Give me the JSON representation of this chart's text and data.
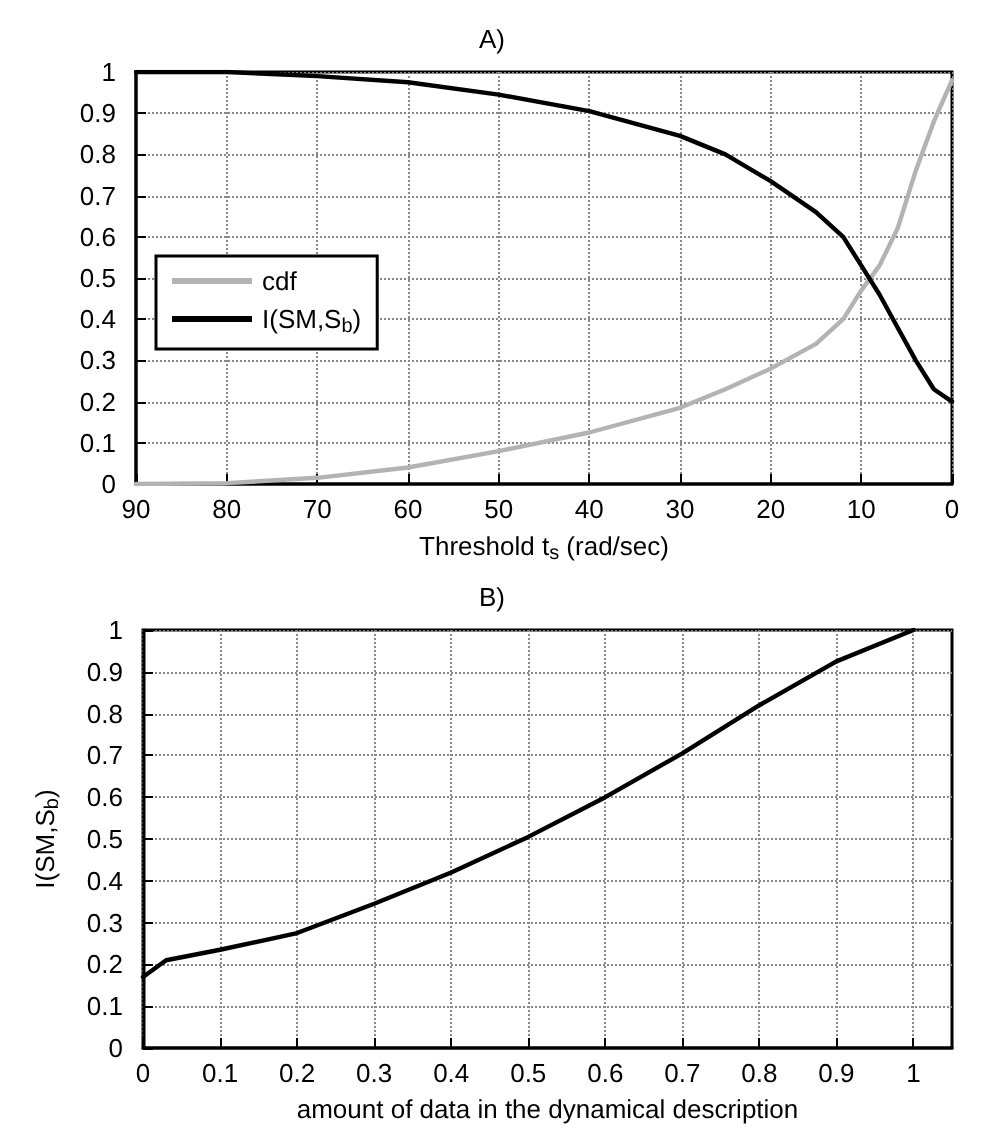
{
  "chart_data": [
    {
      "type": "line",
      "title": "A)",
      "xlabel": "Threshold t$_{s}$ (rad/sec)",
      "x": [
        90,
        80,
        70,
        60,
        50,
        40,
        30,
        25,
        20,
        15,
        12,
        10,
        8,
        6,
        4,
        2,
        0
      ],
      "xlim": [
        90,
        0
      ],
      "xticks": [
        90,
        80,
        70,
        60,
        50,
        40,
        30,
        20,
        10,
        0
      ],
      "ylim": [
        0,
        1
      ],
      "yticks": [
        0,
        0.1,
        0.2,
        0.3,
        0.4,
        0.5,
        0.6,
        0.7,
        0.8,
        0.9,
        1
      ],
      "grid": true,
      "legend": "left",
      "line_style": "solid",
      "marker": "none",
      "series": [
        {
          "name": "cdf",
          "color": "#b3b3b3",
          "values": [
            0,
            0.002,
            0.015,
            0.04,
            0.08,
            0.125,
            0.185,
            0.23,
            0.28,
            0.34,
            0.4,
            0.47,
            0.53,
            0.62,
            0.76,
            0.88,
            0.98
          ]
        },
        {
          "name": "I(SM,S$_{b}$)",
          "color": "#000000",
          "values": [
            1.0,
            1.0,
            0.99,
            0.975,
            0.945,
            0.905,
            0.845,
            0.8,
            0.735,
            0.66,
            0.6,
            0.53,
            0.46,
            0.38,
            0.3,
            0.23,
            0.2
          ]
        }
      ]
    },
    {
      "type": "line",
      "title": "B)",
      "xlabel": "amount of data in the dynamical description",
      "ylabel": "I(SM,S$_{b}$)",
      "x": [
        0,
        0.03,
        0.1,
        0.2,
        0.3,
        0.4,
        0.5,
        0.6,
        0.7,
        0.8,
        0.9,
        1.0
      ],
      "xlim": [
        0,
        1.05
      ],
      "xticks": [
        0,
        0.1,
        0.2,
        0.3,
        0.4,
        0.5,
        0.6,
        0.7,
        0.8,
        0.9,
        1
      ],
      "ylim": [
        0,
        1
      ],
      "yticks": [
        0,
        0.1,
        0.2,
        0.3,
        0.4,
        0.5,
        0.6,
        0.7,
        0.8,
        0.9,
        1
      ],
      "grid": true,
      "line_style": "solid",
      "marker": "none",
      "series": [
        {
          "color": "#000000",
          "values": [
            0.17,
            0.21,
            0.235,
            0.275,
            0.345,
            0.42,
            0.505,
            0.6,
            0.705,
            0.82,
            0.925,
            1.0
          ]
        }
      ]
    }
  ]
}
